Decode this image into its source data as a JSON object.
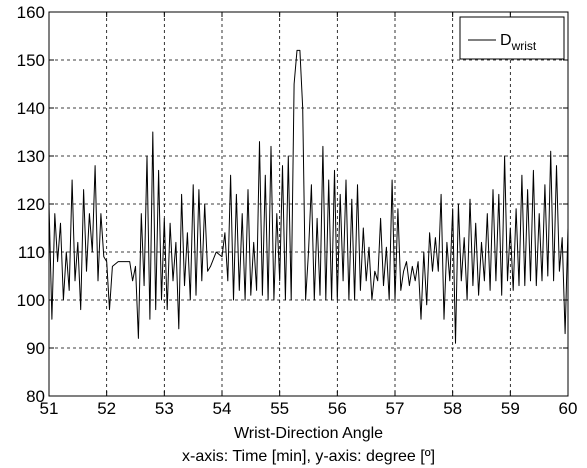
{
  "chart_data": {
    "type": "line",
    "xlabel": "Wrist-Direction Angle",
    "caption": "x-axis: Time [min], y-axis: degree [º]",
    "legend": {
      "main": "D",
      "sub": "wrist",
      "placement": "top-right"
    },
    "xlim": [
      51,
      60
    ],
    "ylim": [
      80,
      160
    ],
    "xticks": [
      "51",
      "52",
      "53",
      "54",
      "55",
      "56",
      "57",
      "58",
      "59",
      "60"
    ],
    "yticks": [
      "80",
      "90",
      "100",
      "110",
      "120",
      "130",
      "140",
      "150",
      "160"
    ],
    "grid": true,
    "series": [
      {
        "name": "Dwrist",
        "color": "#000000",
        "x": [
          51.0,
          51.05,
          51.1,
          51.15,
          51.2,
          51.25,
          51.3,
          51.35,
          51.4,
          51.45,
          51.5,
          51.55,
          51.6,
          51.65,
          51.7,
          51.75,
          51.8,
          51.85,
          51.9,
          51.95,
          52.0,
          52.05,
          52.1,
          52.2,
          52.3,
          52.4,
          52.45,
          52.5,
          52.55,
          52.6,
          52.65,
          52.7,
          52.75,
          52.8,
          52.85,
          52.9,
          52.95,
          53.0,
          53.05,
          53.1,
          53.15,
          53.2,
          53.25,
          53.3,
          53.35,
          53.4,
          53.45,
          53.5,
          53.55,
          53.6,
          53.65,
          53.7,
          53.75,
          53.8,
          53.9,
          54.0,
          54.05,
          54.1,
          54.15,
          54.2,
          54.25,
          54.3,
          54.35,
          54.4,
          54.45,
          54.5,
          54.55,
          54.6,
          54.65,
          54.7,
          54.75,
          54.8,
          54.85,
          54.9,
          54.95,
          55.0,
          55.05,
          55.1,
          55.15,
          55.2,
          55.25,
          55.3,
          55.35,
          55.4,
          55.45,
          55.5,
          55.55,
          55.6,
          55.65,
          55.7,
          55.75,
          55.8,
          55.85,
          55.9,
          55.95,
          56.0,
          56.05,
          56.1,
          56.15,
          56.2,
          56.25,
          56.3,
          56.35,
          56.4,
          56.45,
          56.5,
          56.55,
          56.6,
          56.65,
          56.7,
          56.75,
          56.8,
          56.85,
          56.9,
          56.95,
          57.0,
          57.05,
          57.1,
          57.15,
          57.2,
          57.25,
          57.3,
          57.35,
          57.4,
          57.45,
          57.5,
          57.55,
          57.6,
          57.65,
          57.7,
          57.75,
          57.8,
          57.85,
          57.9,
          57.95,
          58.0,
          58.05,
          58.1,
          58.15,
          58.2,
          58.25,
          58.3,
          58.35,
          58.4,
          58.45,
          58.5,
          58.55,
          58.6,
          58.65,
          58.7,
          58.75,
          58.8,
          58.85,
          58.9,
          58.95,
          59.0,
          59.05,
          59.1,
          59.15,
          59.2,
          59.25,
          59.3,
          59.35,
          59.4,
          59.45,
          59.5,
          59.55,
          59.6,
          59.65,
          59.7,
          59.75,
          59.8,
          59.85,
          59.9,
          59.95,
          60.0
        ],
        "y": [
          120,
          96,
          118,
          108,
          116,
          100,
          110,
          102,
          125,
          104,
          112,
          98,
          123,
          106,
          118,
          110,
          128,
          104,
          118,
          109,
          108,
          98,
          107,
          108,
          108,
          108,
          104,
          107,
          92,
          118,
          103,
          130,
          96,
          135,
          98,
          127,
          100,
          117,
          98,
          116,
          104,
          112,
          94,
          122,
          103,
          114,
          100,
          124,
          101,
          123,
          104,
          120,
          106,
          107,
          110,
          109,
          114,
          104,
          126,
          100,
          122,
          102,
          118,
          100,
          123,
          101,
          112,
          102,
          133,
          101,
          126,
          100,
          132,
          100,
          118,
          104,
          128,
          100,
          130,
          100,
          145,
          152,
          152,
          140,
          100,
          110,
          124,
          100,
          117,
          101,
          132,
          100,
          125,
          100,
          127,
          100,
          122,
          104,
          125,
          100,
          121,
          100,
          124,
          102,
          115,
          104,
          111,
          100,
          106,
          104,
          117,
          103,
          111,
          100,
          125,
          100,
          119,
          102,
          106,
          108,
          103,
          107,
          104,
          108,
          96,
          110,
          99,
          114,
          106,
          113,
          106,
          122,
          96,
          112,
          104,
          119,
          91,
          120,
          104,
          113,
          100,
          121,
          103,
          116,
          101,
          112,
          104,
          118,
          102,
          123,
          104,
          122,
          101,
          130,
          104,
          115,
          102,
          119,
          103,
          126,
          103,
          123,
          104,
          127,
          103,
          118,
          104,
          124,
          105,
          131,
          104,
          128,
          106,
          113,
          93,
          115
        ]
      }
    ]
  }
}
